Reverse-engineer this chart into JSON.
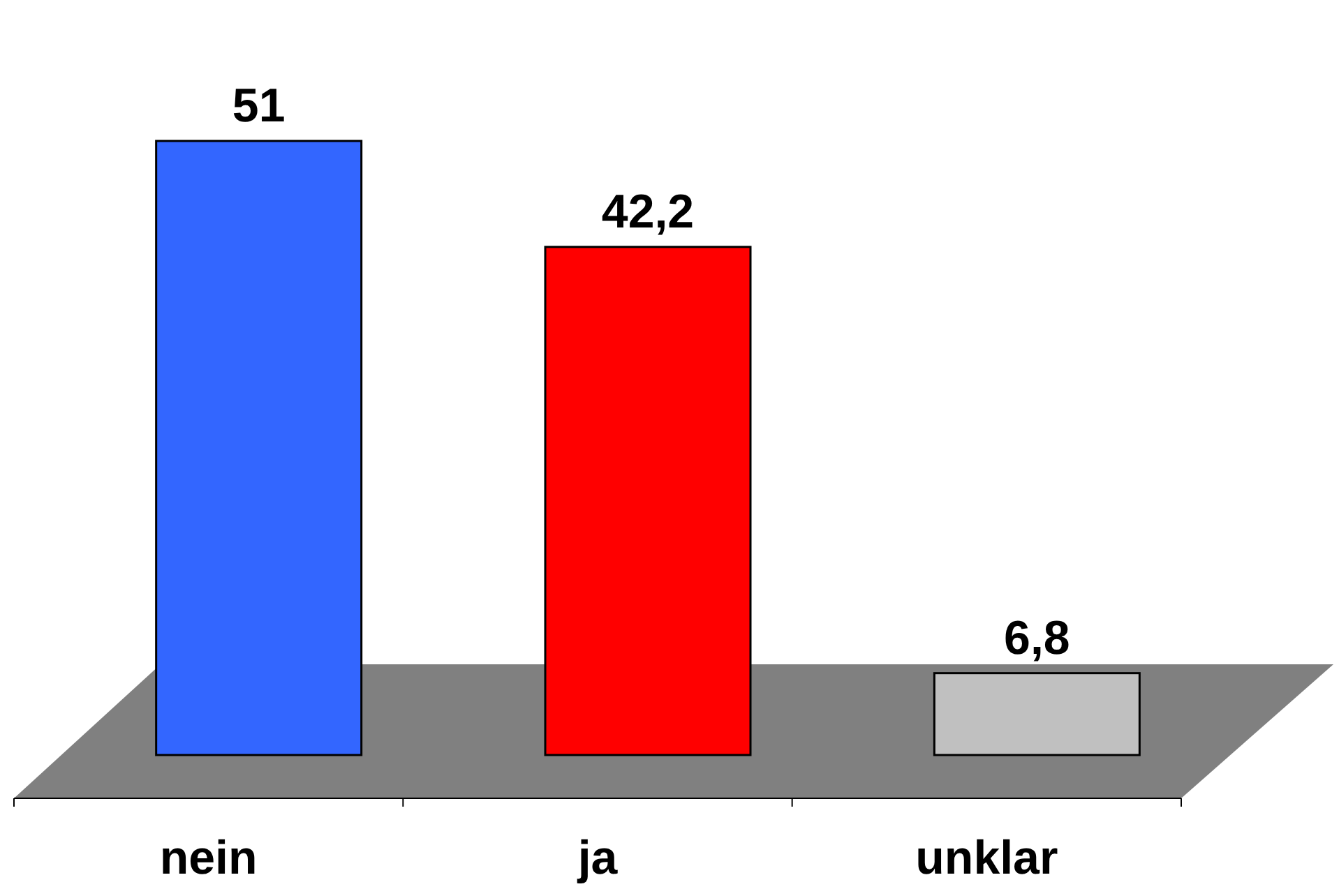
{
  "chart_data": {
    "type": "bar",
    "categories": [
      "nein",
      "ja",
      "unklar"
    ],
    "values": [
      51,
      42.2,
      6.8
    ],
    "colors": [
      "#3366ff",
      "#ff0000",
      "#c0c0c0"
    ],
    "value_labels": [
      "51",
      "42,2",
      "6,8"
    ]
  }
}
